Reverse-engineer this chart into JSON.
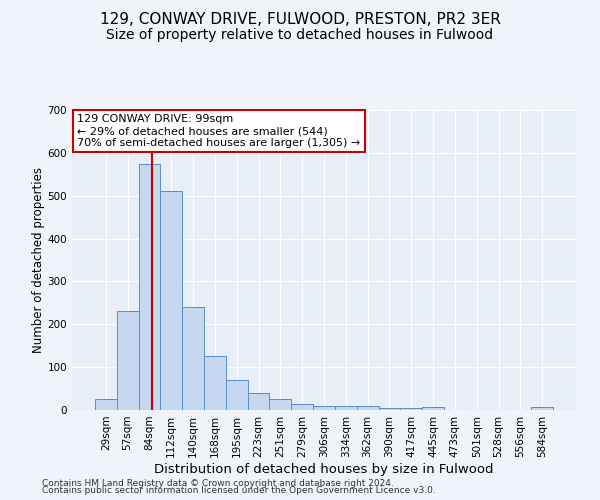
{
  "title1": "129, CONWAY DRIVE, FULWOOD, PRESTON, PR2 3ER",
  "title2": "Size of property relative to detached houses in Fulwood",
  "xlabel": "Distribution of detached houses by size in Fulwood",
  "ylabel": "Number of detached properties",
  "categories": [
    "29sqm",
    "57sqm",
    "84sqm",
    "112sqm",
    "140sqm",
    "168sqm",
    "195sqm",
    "223sqm",
    "251sqm",
    "279sqm",
    "306sqm",
    "334sqm",
    "362sqm",
    "390sqm",
    "417sqm",
    "445sqm",
    "473sqm",
    "501sqm",
    "528sqm",
    "556sqm",
    "584sqm"
  ],
  "values": [
    25,
    230,
    575,
    510,
    240,
    125,
    70,
    40,
    25,
    15,
    10,
    10,
    10,
    5,
    5,
    8,
    0,
    0,
    0,
    0,
    7
  ],
  "bar_color": "#c5d8ef",
  "bar_edge_color": "#5a8fc4",
  "bar_width": 1.0,
  "ylim": [
    0,
    700
  ],
  "yticks": [
    0,
    100,
    200,
    300,
    400,
    500,
    600,
    700
  ],
  "red_line_x": 2.13,
  "annotation_text": "129 CONWAY DRIVE: 99sqm\n← 29% of detached houses are smaller (544)\n70% of semi-detached houses are larger (1,305) →",
  "annotation_box_color": "#ffffff",
  "annotation_box_edge": "#cc0000",
  "footnote1": "Contains HM Land Registry data © Crown copyright and database right 2024.",
  "footnote2": "Contains public sector information licensed under the Open Government Licence v3.0.",
  "background_color": "#e8eef8",
  "grid_color": "#ffffff",
  "title1_fontsize": 11,
  "title2_fontsize": 10,
  "xlabel_fontsize": 9.5,
  "ylabel_fontsize": 8.5,
  "tick_fontsize": 7.5,
  "annotation_fontsize": 8,
  "footnote_fontsize": 6.5
}
